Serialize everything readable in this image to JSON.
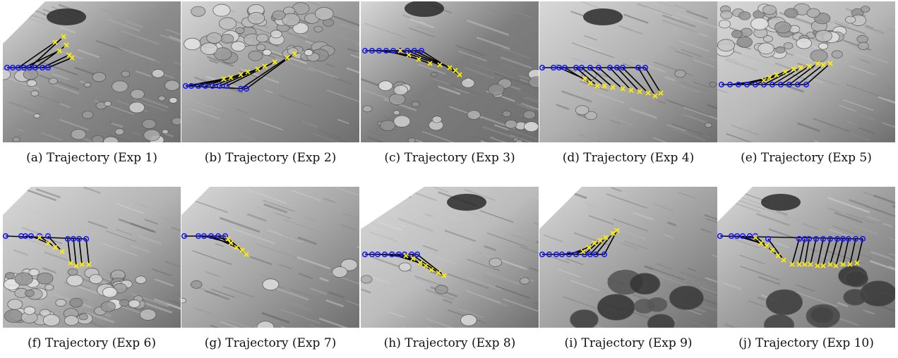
{
  "panels": [
    {
      "caption": "(a)  Trajectory (Exp 1)",
      "terrain": "rocky"
    },
    {
      "caption": "(b)  Trajectory (Exp 2)",
      "terrain": "cobbles"
    },
    {
      "caption": "(c)  Trajectory (Exp 3)",
      "terrain": "rocky"
    },
    {
      "caption": "(d)  Trajectory (Exp 4)",
      "terrain": "sand"
    },
    {
      "caption": "(e)  Trajectory (Exp 5)",
      "terrain": "cobbles"
    },
    {
      "caption": "(f)  Trajectory (Exp 6)",
      "terrain": "cobbles"
    },
    {
      "caption": "(g)  Trajectory (Exp 7)",
      "terrain": "sand"
    },
    {
      "caption": "(h)  Trajectory (Exp 8)",
      "terrain": "sand"
    },
    {
      "caption": "(i)  Trajectory (Exp 9)",
      "terrain": "boulders"
    },
    {
      "caption": "(j)  Trajectory (Exp 10)",
      "terrain": "boulders"
    }
  ],
  "colors": {
    "reference_marker": "#1a1aff",
    "predicted_marker": "#ffee00",
    "link_line": "#000000"
  }
}
